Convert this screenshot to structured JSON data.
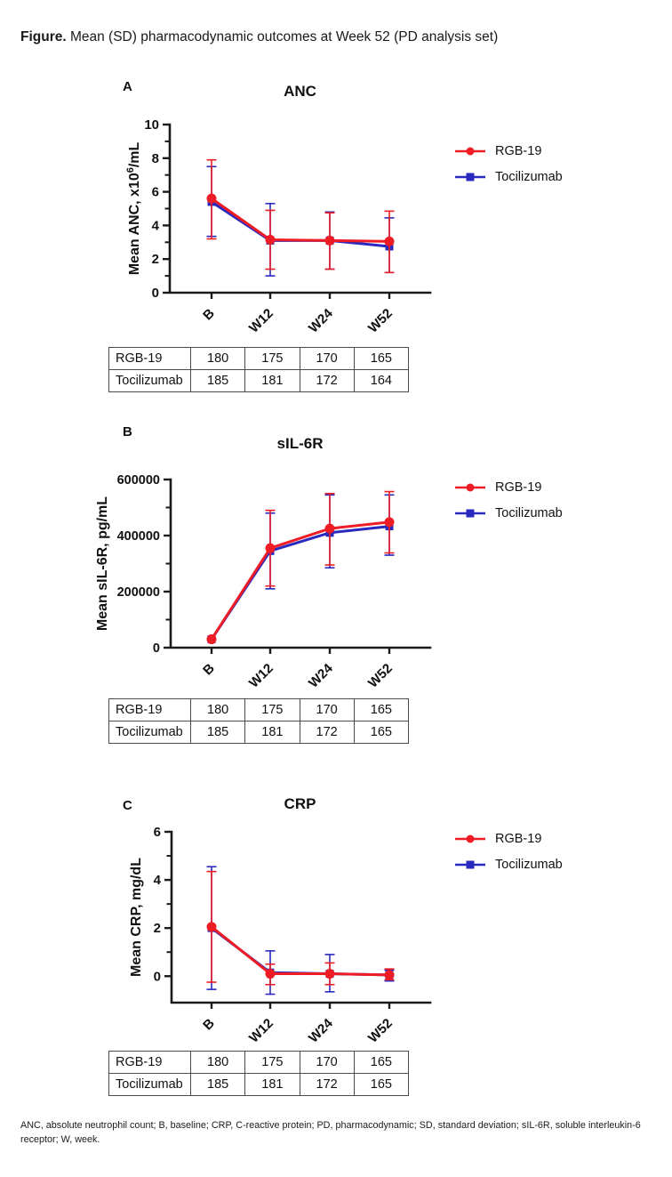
{
  "title": {
    "label": "Figure.",
    "text": " Mean (SD) pharmacodynamic outcomes at Week 52 (PD analysis set)"
  },
  "colors": {
    "rgb19": "#EE1C25",
    "tocilizumab": "#2929C0",
    "axis": "#1a1a1a"
  },
  "legend": {
    "items": [
      {
        "name": "RGB-19",
        "color": "#EE1C25",
        "marker": "circle"
      },
      {
        "name": "Tocilizumab",
        "color": "#2929C0",
        "marker": "square"
      }
    ]
  },
  "chart_data": [
    {
      "panel_label": "A",
      "type": "line",
      "title": "ANC",
      "ylabel": "Mean ANC, x10^6/mL",
      "ylabel_parts": [
        {
          "t": "Mean ANC, x10"
        },
        {
          "t": "6",
          "sup": true
        },
        {
          "t": "/mL"
        }
      ],
      "categories": [
        "B",
        "W12",
        "W24",
        "W52"
      ],
      "ylim": [
        0,
        10
      ],
      "yticks": [
        0,
        2,
        4,
        6,
        8,
        10
      ],
      "yminor": [
        1,
        3,
        5,
        7,
        9
      ],
      "legend_position": "right",
      "grid": false,
      "series": [
        {
          "name": "RGB-19",
          "color": "#EE1C25",
          "marker": "circle",
          "values": [
            5.6,
            3.15,
            3.1,
            3.05
          ],
          "err_low": [
            3.2,
            1.4,
            1.4,
            1.2
          ],
          "err_high": [
            7.9,
            4.9,
            4.75,
            4.85
          ]
        },
        {
          "name": "Tocilizumab",
          "color": "#2929C0",
          "marker": "square",
          "values": [
            5.4,
            3.1,
            3.1,
            2.75
          ],
          "err_low": [
            3.35,
            1.0,
            1.4,
            1.2
          ],
          "err_high": [
            7.5,
            5.3,
            4.8,
            4.45
          ]
        }
      ]
    },
    {
      "panel_label": "B",
      "type": "line",
      "title": "sIL-6R",
      "ylabel": "Mean sIL-6R, pg/mL",
      "ylabel_parts": [
        {
          "t": "Mean sIL-6R, pg/mL"
        }
      ],
      "categories": [
        "B",
        "W12",
        "W24",
        "W52"
      ],
      "ylim": [
        0,
        600000
      ],
      "yticks": [
        0,
        200000,
        400000,
        600000
      ],
      "yminor": [
        100000,
        300000,
        500000
      ],
      "legend_position": "right",
      "grid": false,
      "series": [
        {
          "name": "RGB-19",
          "color": "#EE1C25",
          "marker": "circle",
          "values": [
            30000,
            355000,
            425000,
            448000
          ],
          "err_low": [
            null,
            220000,
            295000,
            338000
          ],
          "err_high": [
            null,
            490000,
            550000,
            557000
          ]
        },
        {
          "name": "Tocilizumab",
          "color": "#2929C0",
          "marker": "square",
          "values": [
            30000,
            345000,
            410000,
            433000
          ],
          "err_low": [
            null,
            210000,
            285000,
            330000
          ],
          "err_high": [
            null,
            480000,
            545000,
            545000
          ]
        }
      ]
    },
    {
      "panel_label": "C",
      "type": "line",
      "title": "CRP",
      "ylabel": "Mean CRP, mg/dL",
      "ylabel_parts": [
        {
          "t": "Mean CRP, mg/dL"
        }
      ],
      "categories": [
        "B",
        "W12",
        "W24",
        "W52"
      ],
      "ylim": [
        -1.1,
        6
      ],
      "yticks": [
        0,
        2,
        4,
        6
      ],
      "yminor": [
        1,
        3,
        5
      ],
      "legend_position": "right",
      "grid": false,
      "series": [
        {
          "name": "RGB-19",
          "color": "#EE1C25",
          "marker": "circle",
          "values": [
            2.05,
            0.1,
            0.1,
            0.05
          ],
          "err_low": [
            -0.25,
            -0.35,
            -0.35,
            -0.15
          ],
          "err_high": [
            4.35,
            0.5,
            0.55,
            0.3
          ]
        },
        {
          "name": "Tocilizumab",
          "color": "#2929C0",
          "marker": "square",
          "values": [
            2.0,
            0.15,
            0.1,
            0.05
          ],
          "err_low": [
            -0.55,
            -0.75,
            -0.65,
            -0.2
          ],
          "err_high": [
            4.55,
            1.05,
            0.9,
            0.25
          ]
        }
      ]
    }
  ],
  "n_tables": [
    {
      "rows": [
        [
          "RGB-19",
          "180",
          "175",
          "170",
          "165"
        ],
        [
          "Tocilizumab",
          "185",
          "181",
          "172",
          "164"
        ]
      ]
    },
    {
      "rows": [
        [
          "RGB-19",
          "180",
          "175",
          "170",
          "165"
        ],
        [
          "Tocilizumab",
          "185",
          "181",
          "172",
          "165"
        ]
      ]
    },
    {
      "rows": [
        [
          "RGB-19",
          "180",
          "175",
          "170",
          "165"
        ],
        [
          "Tocilizumab",
          "185",
          "181",
          "172",
          "165"
        ]
      ]
    }
  ],
  "footnote": "ANC, absolute neutrophil count; B, baseline; CRP, C-reactive protein; PD, pharmacodynamic; SD, standard deviation; sIL-6R, soluble interleukin-6 receptor; W, week."
}
